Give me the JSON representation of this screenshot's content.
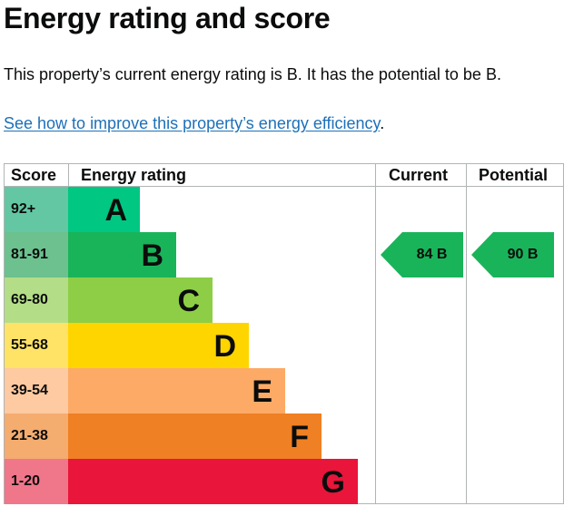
{
  "heading": "Energy rating and score",
  "summary": "This property’s current energy rating is B. It has the potential to be B.",
  "link": {
    "text": "See how to improve this property’s energy efficiency",
    "suffix": "."
  },
  "table_headers": {
    "score": "Score",
    "rating": "Energy rating",
    "current": "Current",
    "potential": "Potential"
  },
  "bands": [
    {
      "score": "92+",
      "letter": "A",
      "color": "#00c781",
      "score_color": "#64c7a4"
    },
    {
      "score": "81-91",
      "letter": "B",
      "color": "#19b459",
      "score_color": "#6cc18f"
    },
    {
      "score": "69-80",
      "letter": "C",
      "color": "#8dce46",
      "score_color": "#b4dd87"
    },
    {
      "score": "55-68",
      "letter": "D",
      "color": "#ffd500",
      "score_color": "#ffe366"
    },
    {
      "score": "39-54",
      "letter": "E",
      "color": "#fcaa65",
      "score_color": "#fdcaa1"
    },
    {
      "score": "21-38",
      "letter": "F",
      "color": "#ef8023",
      "score_color": "#f4ac6f"
    },
    {
      "score": "1-20",
      "letter": "G",
      "color": "#e9153b",
      "score_color": "#f0768a"
    }
  ],
  "current": {
    "score": "84",
    "letter": "B",
    "text": "84  B",
    "color": "#19b459"
  },
  "potential": {
    "score": "90",
    "letter": "B",
    "text": "90  B",
    "color": "#19b459"
  }
}
